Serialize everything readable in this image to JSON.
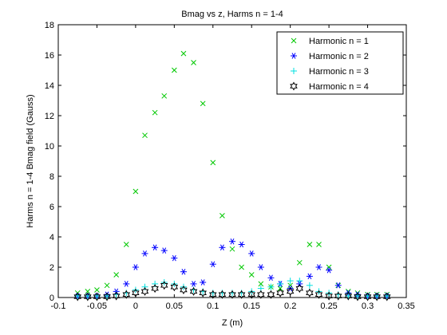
{
  "chart_data": {
    "type": "scatter",
    "title": "Bmag vs z, Harms n = 1-4",
    "xlabel": "Z (m)",
    "ylabel": "Harms n = 1-4 Bmag field (Gauss)",
    "xlim": [
      -0.1,
      0.35
    ],
    "ylim": [
      0,
      18
    ],
    "x_ticks": [
      "-0.1",
      "-0.05",
      "0",
      "0.05",
      "0.1",
      "0.15",
      "0.2",
      "0.25",
      "0.3",
      "0.35"
    ],
    "y_ticks": [
      "0",
      "2",
      "4",
      "6",
      "8",
      "10",
      "12",
      "14",
      "16",
      "18"
    ],
    "grid": false,
    "legend_position": "top-right",
    "series": [
      {
        "name": "Harmonic n = 1",
        "marker": "x",
        "color": "#00c800",
        "points": [
          [
            -0.075,
            0.3
          ],
          [
            -0.062,
            0.4
          ],
          [
            -0.05,
            0.5
          ],
          [
            -0.037,
            0.8
          ],
          [
            -0.025,
            1.5
          ],
          [
            -0.012,
            3.5
          ],
          [
            0.0,
            7.0
          ],
          [
            0.012,
            10.7
          ],
          [
            0.025,
            12.2
          ],
          [
            0.037,
            13.3
          ],
          [
            0.05,
            15.0
          ],
          [
            0.062,
            16.1
          ],
          [
            0.075,
            15.5
          ],
          [
            0.087,
            12.8
          ],
          [
            0.1,
            8.9
          ],
          [
            0.112,
            5.4
          ],
          [
            0.125,
            3.2
          ],
          [
            0.137,
            2.0
          ],
          [
            0.15,
            1.5
          ],
          [
            0.162,
            0.9
          ],
          [
            0.175,
            0.7
          ],
          [
            0.187,
            0.6
          ],
          [
            0.2,
            0.8
          ],
          [
            0.212,
            2.3
          ],
          [
            0.225,
            3.5
          ],
          [
            0.237,
            3.5
          ],
          [
            0.25,
            2.0
          ],
          [
            0.262,
            0.8
          ],
          [
            0.275,
            0.4
          ],
          [
            0.287,
            0.3
          ],
          [
            0.3,
            0.2
          ],
          [
            0.312,
            0.2
          ],
          [
            0.325,
            0.2
          ]
        ]
      },
      {
        "name": "Harmonic n = 2",
        "marker": "asterisk",
        "color": "#0000ff",
        "points": [
          [
            -0.075,
            0.1
          ],
          [
            -0.062,
            0.1
          ],
          [
            -0.05,
            0.1
          ],
          [
            -0.037,
            0.2
          ],
          [
            -0.025,
            0.4
          ],
          [
            -0.012,
            0.9
          ],
          [
            0.0,
            2.0
          ],
          [
            0.012,
            2.9
          ],
          [
            0.025,
            3.3
          ],
          [
            0.037,
            3.1
          ],
          [
            0.05,
            2.6
          ],
          [
            0.062,
            1.7
          ],
          [
            0.075,
            0.9
          ],
          [
            0.087,
            1.0
          ],
          [
            0.1,
            2.2
          ],
          [
            0.112,
            3.3
          ],
          [
            0.125,
            3.7
          ],
          [
            0.137,
            3.5
          ],
          [
            0.15,
            2.9
          ],
          [
            0.162,
            2.0
          ],
          [
            0.175,
            1.3
          ],
          [
            0.187,
            0.9
          ],
          [
            0.2,
            0.6
          ],
          [
            0.212,
            0.9
          ],
          [
            0.225,
            1.4
          ],
          [
            0.237,
            2.0
          ],
          [
            0.25,
            1.8
          ],
          [
            0.262,
            0.8
          ],
          [
            0.275,
            0.3
          ],
          [
            0.287,
            0.2
          ],
          [
            0.3,
            0.1
          ],
          [
            0.312,
            0.1
          ],
          [
            0.325,
            0.1
          ]
        ]
      },
      {
        "name": "Harmonic n = 3",
        "marker": "plus",
        "color": "#00e0e0",
        "points": [
          [
            -0.075,
            0.1
          ],
          [
            -0.062,
            0.1
          ],
          [
            -0.05,
            0.1
          ],
          [
            -0.037,
            0.1
          ],
          [
            -0.025,
            0.2
          ],
          [
            -0.012,
            0.3
          ],
          [
            0.0,
            0.5
          ],
          [
            0.012,
            0.7
          ],
          [
            0.025,
            0.9
          ],
          [
            0.037,
            1.0
          ],
          [
            0.05,
            0.9
          ],
          [
            0.062,
            0.7
          ],
          [
            0.075,
            0.5
          ],
          [
            0.087,
            0.4
          ],
          [
            0.1,
            0.3
          ],
          [
            0.112,
            0.3
          ],
          [
            0.125,
            0.3
          ],
          [
            0.137,
            0.3
          ],
          [
            0.15,
            0.4
          ],
          [
            0.162,
            0.6
          ],
          [
            0.175,
            0.7
          ],
          [
            0.187,
            0.9
          ],
          [
            0.2,
            1.1
          ],
          [
            0.212,
            1.1
          ],
          [
            0.225,
            0.8
          ],
          [
            0.237,
            0.4
          ],
          [
            0.25,
            0.3
          ],
          [
            0.262,
            0.2
          ],
          [
            0.275,
            0.1
          ],
          [
            0.287,
            0.1
          ],
          [
            0.3,
            0.1
          ],
          [
            0.312,
            0.1
          ],
          [
            0.325,
            0.1
          ]
        ]
      },
      {
        "name": "Harmonic n = 4",
        "marker": "hexagram",
        "color": "#000000",
        "points": [
          [
            -0.075,
            0.05
          ],
          [
            -0.062,
            0.05
          ],
          [
            -0.05,
            0.05
          ],
          [
            -0.037,
            0.05
          ],
          [
            -0.025,
            0.1
          ],
          [
            -0.012,
            0.2
          ],
          [
            0.0,
            0.3
          ],
          [
            0.012,
            0.4
          ],
          [
            0.025,
            0.6
          ],
          [
            0.037,
            0.8
          ],
          [
            0.05,
            0.7
          ],
          [
            0.062,
            0.5
          ],
          [
            0.075,
            0.4
          ],
          [
            0.087,
            0.3
          ],
          [
            0.1,
            0.2
          ],
          [
            0.112,
            0.2
          ],
          [
            0.125,
            0.2
          ],
          [
            0.137,
            0.2
          ],
          [
            0.15,
            0.2
          ],
          [
            0.162,
            0.2
          ],
          [
            0.175,
            0.2
          ],
          [
            0.187,
            0.3
          ],
          [
            0.2,
            0.4
          ],
          [
            0.212,
            0.6
          ],
          [
            0.225,
            0.3
          ],
          [
            0.237,
            0.2
          ],
          [
            0.25,
            0.1
          ],
          [
            0.262,
            0.1
          ],
          [
            0.275,
            0.1
          ],
          [
            0.287,
            0.05
          ],
          [
            0.3,
            0.05
          ],
          [
            0.312,
            0.05
          ],
          [
            0.325,
            0.05
          ]
        ]
      }
    ]
  }
}
